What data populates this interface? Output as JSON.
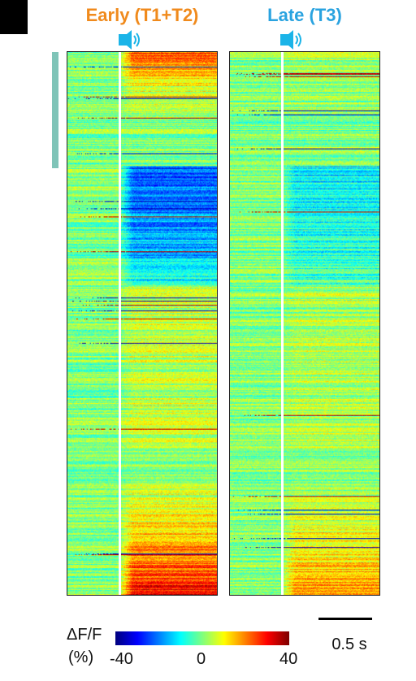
{
  "titles": {
    "early": "Early (T1+T2)",
    "late": "Late (T3)",
    "early_color": "#f08a1c",
    "late_color": "#2aa3e0"
  },
  "icons": {
    "speaker": "speaker-sound-icon",
    "speaker_color": "#1bb4e8"
  },
  "cluster_bar_color": "#7fc4b8",
  "colorbar": {
    "label_top": "ΔF/F",
    "label_bottom": "(%)",
    "min_label": "-40",
    "zero_label": "0",
    "max_label": "40",
    "min": -40,
    "max": 40,
    "colormap": "jet"
  },
  "scale": {
    "label": "0.5 s",
    "duration_s": 0.5
  },
  "chart_data": [
    {
      "type": "heatmap",
      "title": "Early (T1+T2)",
      "colorscale": "jet",
      "zlim": [
        -40,
        40
      ],
      "sound_onset_fraction": 0.34,
      "row_groups": [
        {
          "fraction": 0.21,
          "baseline": 0,
          "response": 25,
          "note_from_fill": "strong positive at top rows decaying"
        },
        {
          "fraction": 0.22,
          "baseline": 0,
          "response": -25
        },
        {
          "fraction": 0.3,
          "baseline": 0,
          "response": 5
        },
        {
          "fraction": 0.27,
          "baseline": 0,
          "response": 30
        }
      ]
    },
    {
      "type": "heatmap",
      "title": "Late (T3)",
      "colorscale": "jet",
      "zlim": [
        -40,
        40
      ],
      "sound_onset_fraction": 0.34,
      "row_groups": [
        {
          "fraction": 0.21,
          "baseline": 0,
          "response": 3
        },
        {
          "fraction": 0.22,
          "baseline": 0,
          "response": -12
        },
        {
          "fraction": 0.3,
          "baseline": 0,
          "response": 3
        },
        {
          "fraction": 0.27,
          "baseline": 0,
          "response": 18
        }
      ]
    }
  ]
}
